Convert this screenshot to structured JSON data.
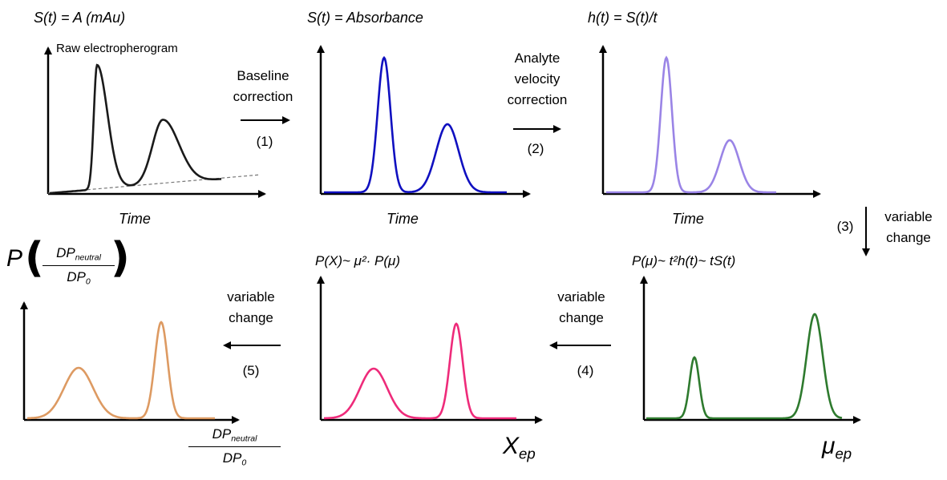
{
  "panels": {
    "p1": {
      "header": "S(t) = A (mAu)",
      "note": "Raw electropherogram",
      "xaxis": "Time",
      "color": "#1a1a1a"
    },
    "p2": {
      "header": "S(t) = Absorbance",
      "xaxis": "Time",
      "color": "#1010c0"
    },
    "p3": {
      "header": "h(t) = S(t)/t",
      "xaxis": "Time",
      "color": "#9a84e6"
    },
    "p4": {
      "header": "P(μ)~ t²h(t)~ tS(t)",
      "xaxis_main": "μ",
      "xaxis_sub": "ep",
      "color": "#2e7a2e"
    },
    "p5": {
      "header": "P(X)~ μ²· P(μ)",
      "xaxis_main": "X",
      "xaxis_sub": "ep",
      "color": "#ee2b7a"
    },
    "p6": {
      "header_prefix": "P",
      "frac_num_main": "DP",
      "frac_num_sub": "neutral",
      "frac_den_main": "DP",
      "frac_den_sub": "0",
      "color": "#dd9a62"
    }
  },
  "steps": {
    "s1": {
      "line1": "Baseline",
      "line2": "correction",
      "num": "(1)"
    },
    "s2": {
      "line1": "Analyte",
      "line2": "velocity",
      "line3": "correction",
      "num": "(2)"
    },
    "s3": {
      "num": "(3)",
      "line1": "variable",
      "line2": "change"
    },
    "s4": {
      "line1": "variable",
      "line2": "change",
      "num": "(4)"
    },
    "s5": {
      "line1": "variable",
      "line2": "change",
      "num": "(5)"
    }
  }
}
